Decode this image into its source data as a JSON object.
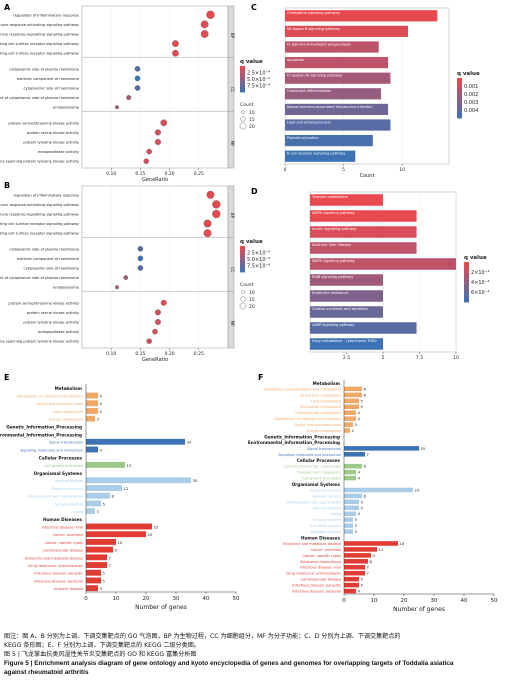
{
  "panel_labels": {
    "A": "A",
    "B": "B",
    "C": "C",
    "D": "D",
    "E": "E",
    "F": "F"
  },
  "caption": {
    "line1": "图注：图 A、B 分别为上调、下调交集靶点的 GO 气泡图，BP 为生物过程，CC 为细胞组分，MF 为分子功能；C、D 分别为上调、下调交集靶点的",
    "line2": "KEGG 条形图；E、F 分别为上调、下调交集靶点的 KEGG 二级分类图。",
    "line3": "图 5 | 飞龙掌血抗类风湿性关节炎交集靶点的 GO 和 KEGG 富集分析图",
    "line4": "Figure 5 | Enrichment analysis diagram of gene ontology and kyoto encyclopedia of genes and genomes for overlapping targets of Toddalia asiatica",
    "line5": "against rheumatoid arthritis"
  },
  "chart_data": [
    {
      "panel": "A",
      "type": "scatter",
      "xlabel": "GeneRatio",
      "xlim": [
        0.05,
        0.3
      ],
      "xticks": [
        0.1,
        0.15,
        0.2,
        0.25
      ],
      "groups": [
        "BP",
        "CC",
        "MF"
      ],
      "categories": [
        "regulation of inflammatory response",
        "immune response-activating signaling pathway",
        "immune response-regulating signaling pathway",
        "immune response-activating cell surface receptor signaling pathway",
        "immune response-regulating cell surface receptor signaling pathway",
        "cytoplasmic side of plasma membrane",
        "extrinsic component of membrane",
        "cytoplasmic side of membrane",
        "extrinsic component of cytoplasmic side of plasma membrane",
        "endolysosome",
        "protein serine/threonine kinase activity",
        "protein serine kinase activity",
        "protein tyrosine kinase activity",
        "endopeptidase activity",
        "non-membrane spanning protein tyrosine kinase activity"
      ],
      "group_index": [
        0,
        0,
        0,
        0,
        0,
        1,
        1,
        1,
        1,
        1,
        2,
        2,
        2,
        2,
        2
      ],
      "x": [
        0.27,
        0.26,
        0.26,
        0.21,
        0.21,
        0.145,
        0.145,
        0.145,
        0.13,
        0.11,
        0.19,
        0.18,
        0.18,
        0.165,
        0.16
      ],
      "count": [
        12,
        11,
        11,
        9,
        9,
        7,
        7,
        7,
        6,
        4,
        9,
        8,
        8,
        7,
        7
      ],
      "qvalue": [
        5e-06,
        2e-05,
        2e-05,
        2e-05,
        2e-05,
        0.0006,
        0.0007,
        0.0006,
        0.0003,
        0.0003,
        5e-05,
        8e-05,
        8e-05,
        0.0001,
        0.0001
      ],
      "legend": {
        "q_title": "q value",
        "q_ticks": [
          "2.5×10⁻⁴",
          "5.0×10⁻⁴",
          "7.5×10⁻⁴"
        ],
        "size_title": "Count",
        "size_ticks": [
          "10",
          "15",
          "20"
        ]
      },
      "colors": {
        "low": "#e8494f",
        "high": "#3d72b4"
      }
    },
    {
      "panel": "B",
      "type": "scatter",
      "xlabel": "GeneRatio",
      "xlim": [
        0.05,
        0.3
      ],
      "xticks": [
        0.1,
        0.15,
        0.2,
        0.25
      ],
      "groups": [
        "BP",
        "CC",
        "MF"
      ],
      "categories": [
        "regulation of inflammatory response",
        "immune response-activating signaling pathway",
        "immune response-regulating signaling pathway",
        "immune response-activating cell surface receptor signaling pathway",
        "immune response-regulating cell surface receptor signaling pathway",
        "cytoplasmic side of plasma membrane",
        "extrinsic component of membrane",
        "cytoplasmic side of membrane",
        "extrinsic component of cytoplasmic side of plasma membrane",
        "endolysosome",
        "protein serine/threonine kinase activity",
        "protein serine kinase activity",
        "protein tyrosine kinase activity",
        "endopeptidase activity",
        "non-membrane spanning protein tyrosine kinase activity"
      ],
      "group_index": [
        0,
        0,
        0,
        0,
        0,
        1,
        1,
        1,
        1,
        1,
        2,
        2,
        2,
        2,
        2
      ],
      "x": [
        0.27,
        0.28,
        0.28,
        0.265,
        0.265,
        0.15,
        0.15,
        0.15,
        0.125,
        0.11,
        0.19,
        0.18,
        0.18,
        0.175,
        0.165
      ],
      "count": [
        14,
        15,
        15,
        14,
        14,
        8,
        8,
        8,
        6,
        4,
        9,
        9,
        9,
        8,
        8
      ],
      "qvalue": [
        2e-05,
        1e-05,
        1e-05,
        3e-05,
        3e-05,
        0.0006,
        0.0007,
        0.0006,
        0.0003,
        0.0003,
        5e-05,
        8e-05,
        8e-05,
        0.0001,
        0.0001
      ],
      "legend": {
        "q_title": "q value",
        "q_ticks": [
          "2.5×10⁻⁴",
          "5.0×10⁻⁴",
          "7.5×10⁻⁴"
        ],
        "size_title": "Count",
        "size_ticks": [
          "10",
          "15",
          "20"
        ]
      },
      "colors": {
        "low": "#e8494f",
        "high": "#3d72b4"
      }
    },
    {
      "panel": "C",
      "type": "bar",
      "xlabel": "Count",
      "xlim": [
        0,
        14
      ],
      "xticks": [
        0,
        5,
        10
      ],
      "categories": [
        "Chemokine signaling pathway",
        "NF-kappa B signaling pathway",
        "Fc gamma R-mediated phagocytosis",
        "Apoptosis",
        "Fc epsilon RI signaling pathway",
        "Osteoclast differentiation",
        "Kaposi sarcoma-associated herpesvirus infection",
        "Lipid and atherosclerosis",
        "Platelet activation",
        "B cell receptor signaling pathway"
      ],
      "values": [
        13,
        10.5,
        8,
        8.8,
        9,
        8.2,
        8.8,
        9,
        7.5,
        6
      ],
      "qvalue": [
        0.0001,
        0.0004,
        0.0012,
        0.0012,
        0.0018,
        0.0022,
        0.0032,
        0.0038,
        0.0042,
        0.0045
      ],
      "legend": {
        "q_title": "q value",
        "q_ticks": [
          "0.001",
          "0.002",
          "0.003",
          "0.004"
        ]
      },
      "colors": {
        "low": "#e8494f",
        "high": "#3d72b4"
      }
    },
    {
      "panel": "D",
      "type": "bar",
      "xlabel": "",
      "xlim": [
        0,
        10
      ],
      "xticks": [
        2.5,
        5.0,
        7.5,
        10.0
      ],
      "categories": [
        "Tyrosine metabolism",
        "AMPK signaling pathway",
        "Insulin signaling pathway",
        "Alcoholic liver disease",
        "MAPK signaling pathway",
        "ErbB signaling pathway",
        "Endocrine resistance",
        "Cortisol synthesis and secretion",
        "cAMP signaling pathway",
        "Drug metabolism - cytochrome P450"
      ],
      "values": [
        5,
        7.3,
        7.3,
        7.3,
        10,
        5,
        5,
        5,
        7.3,
        5
      ],
      "qvalue": [
        0.00018,
        0.00018,
        0.00022,
        0.00028,
        0.00028,
        0.00035,
        0.00042,
        0.00048,
        0.00052,
        0.00058
      ],
      "legend": {
        "q_title": "q value",
        "q_ticks": [
          "2×10⁻⁴",
          "4×10⁻⁴",
          "6×10⁻⁴"
        ]
      },
      "colors": {
        "low": "#e8494f",
        "high": "#3d72b4"
      }
    },
    {
      "panel": "E",
      "type": "bar",
      "xlabel": "Number of genes",
      "xlim": [
        0,
        50
      ],
      "xticks": [
        0,
        10,
        20,
        30,
        40,
        50
      ],
      "groups": [
        {
          "name": "Metabolism",
          "color": "#f0a868",
          "items": [
            {
              "label": "Metabolism of cofactors and vitamins",
              "value": 4
            },
            {
              "label": "Global and overview maps",
              "value": 4
            },
            {
              "label": "Lipid metabolism",
              "value": 4
            },
            {
              "label": "Energy metabolism",
              "value": 3
            }
          ]
        },
        {
          "name": "Genetic_Information_Processing",
          "color": "#cccccc",
          "items": []
        },
        {
          "name": "Environmental_Information_Processing",
          "color": "#3d72b4",
          "items": [
            {
              "label": "Signal transduction",
              "value": 33
            },
            {
              "label": "Signaling molecules and interaction",
              "value": 4
            }
          ]
        },
        {
          "name": "Cellular Processes",
          "color": "#9cc98a",
          "items": [
            {
              "label": "Cell growth and death",
              "value": 13
            }
          ]
        },
        {
          "name": "Organismal Systems",
          "color": "#a9cde6",
          "items": [
            {
              "label": "Immune system",
              "value": 35
            },
            {
              "label": "Endocrine system",
              "value": 12
            },
            {
              "label": "Development and regeneration",
              "value": 8
            },
            {
              "label": "Nervous system",
              "value": 5
            },
            {
              "label": "Aging",
              "value": 3
            }
          ]
        },
        {
          "name": "Human Diseases",
          "color": "#e03b34",
          "items": [
            {
              "label": "Infectious disease: viral",
              "value": 22
            },
            {
              "label": "Cancer: overview",
              "value": 20
            },
            {
              "label": "Cancer: specific types",
              "value": 10
            },
            {
              "label": "Cardiovascular disease",
              "value": 9
            },
            {
              "label": "Endocrine and metabolic disease",
              "value": 7
            },
            {
              "label": "Drug resistance: antineoplastic",
              "value": 7
            },
            {
              "label": "Infectious disease: parasitic",
              "value": 5
            },
            {
              "label": "Infectious disease: bacterial",
              "value": 5
            },
            {
              "label": "Immune disease",
              "value": 4
            }
          ]
        }
      ]
    },
    {
      "panel": "F",
      "type": "bar",
      "xlabel": "Number of genes",
      "xlim": [
        0,
        50
      ],
      "xticks": [
        0,
        10,
        20,
        30,
        40,
        50
      ],
      "groups": [
        {
          "name": "Metabolism",
          "color": "#f0a868",
          "items": [
            {
              "label": "Xenobiotics biodegradation and metabolism",
              "value": 6
            },
            {
              "label": "Amino acid metabolism",
              "value": 6
            },
            {
              "label": "Lipid metabolism",
              "value": 5
            },
            {
              "label": "Nucleotide metabolism",
              "value": 5
            },
            {
              "label": "Carbohydrate metabolism",
              "value": 4
            },
            {
              "label": "Metabolism of cofactors and vitamins",
              "value": 4
            },
            {
              "label": "Global and overview maps",
              "value": 3
            },
            {
              "label": "Energy metabolism",
              "value": 2
            }
          ]
        },
        {
          "name": "Genetic_Information_Processing",
          "color": "#cccccc",
          "items": []
        },
        {
          "name": "Environmental_Information_Processing",
          "color": "#3d72b4",
          "items": [
            {
              "label": "Signal transduction",
              "value": 25
            },
            {
              "label": "Signaling molecules and interaction",
              "value": 7
            }
          ]
        },
        {
          "name": "Cellular Processes",
          "color": "#9cc98a",
          "items": [
            {
              "label": "Cellular community - eukaryotes",
              "value": 6
            },
            {
              "label": "Transport and catabolism",
              "value": 4
            },
            {
              "label": "Cell growth and death",
              "value": 4
            }
          ]
        },
        {
          "name": "Organismal Systems",
          "color": "#a9cde6",
          "items": [
            {
              "label": "Endocrine system",
              "value": 23
            },
            {
              "label": "Nervous system",
              "value": 6
            },
            {
              "label": "Development and regeneration",
              "value": 5
            },
            {
              "label": "Immune system",
              "value": 5
            },
            {
              "label": "Aging",
              "value": 4
            },
            {
              "label": "Sensory system",
              "value": 3
            },
            {
              "label": "Excretory system",
              "value": 3
            },
            {
              "label": "Digestive system",
              "value": 3
            }
          ]
        },
        {
          "name": "Human Diseases",
          "color": "#e03b34",
          "items": [
            {
              "label": "Endocrine and metabolic disease",
              "value": 18
            },
            {
              "label": "Cancer: overview",
              "value": 11
            },
            {
              "label": "Cancer: specific types",
              "value": 9
            },
            {
              "label": "Substance dependence",
              "value": 8
            },
            {
              "label": "Infectious disease: viral",
              "value": 7
            },
            {
              "label": "Drug resistance: antineoplastic",
              "value": 7
            },
            {
              "label": "Cardiovascular disease",
              "value": 5
            },
            {
              "label": "Infectious disease: parasitic",
              "value": 5
            },
            {
              "label": "Infectious disease: bacterial",
              "value": 4
            }
          ]
        }
      ]
    }
  ]
}
